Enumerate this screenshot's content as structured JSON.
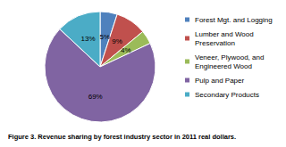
{
  "chart_data": {
    "type": "pie",
    "title": "Figure 3. Revenue sharing by forest industry sector in 2011 real dollars.",
    "categories": [
      "Forest Mgt. and Logging",
      "Lumber and Wood Preservation",
      "Veneer, Plywood, and Engineered Wood",
      "Pulp and Paper",
      "Secondary Products"
    ],
    "values": [
      5,
      9,
      4,
      69,
      13
    ],
    "value_labels": [
      "5%",
      "9%",
      "4%",
      "69%",
      "13%"
    ],
    "colors": [
      "#4f81bd",
      "#c0504d",
      "#9bbb59",
      "#8064a2",
      "#4bacc6"
    ],
    "data_labels": true,
    "legend": "right"
  }
}
